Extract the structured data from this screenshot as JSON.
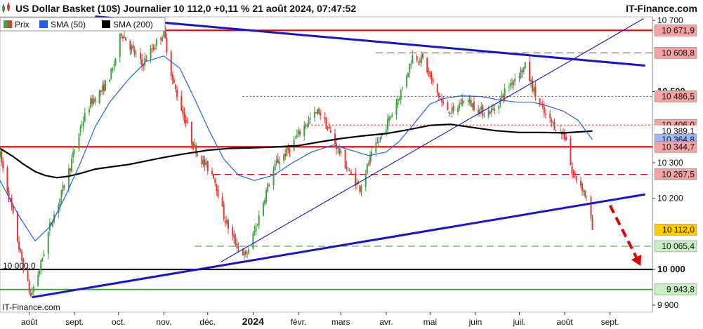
{
  "header": {
    "title": "US Dollar Basket (10$) Journalier 10 112,0 +0,11 % 21 août 2024, 07:47:52",
    "brand": "IT-Finance.com",
    "watermark": "IT-Finance.com",
    "candle_icon": "candlestick-icon"
  },
  "legend": [
    {
      "label": "Prix",
      "color": "#43a047",
      "color2": "#e53935"
    },
    {
      "label": "SMA (50)",
      "color": "#1f5ff2"
    },
    {
      "label": "SMA (200)",
      "color": "#000000"
    }
  ],
  "annotations": {
    "left_level_label": "10 000,0"
  },
  "colors": {
    "up": "#43a047",
    "down": "#e53935",
    "sma50": "#1f5ff2",
    "sma200": "#000000",
    "trendline": "#1414d2",
    "resistance": "#e00000",
    "support_green": "#34a02a",
    "arrow": "#e00000",
    "label_red_bg": "#f2a3a3",
    "label_blue_bg": "#9cb8f5",
    "label_green_bg": "#c8efc4",
    "label_price_bg": "#ffcc00"
  },
  "chart_data": {
    "type": "candlestick",
    "title": "US Dollar Basket (10$) Journalier",
    "last_value": 10112.0,
    "change_pct": 0.11,
    "timestamp": "21 août 2024, 07:47:52",
    "xlabel": "",
    "ylabel": "",
    "x_ticks": [
      {
        "label": "août",
        "date": "2023-08-01",
        "bold": false
      },
      {
        "label": "sept.",
        "date": "2023-09-01",
        "bold": false
      },
      {
        "label": "oct.",
        "date": "2023-10-01",
        "bold": false
      },
      {
        "label": "nov.",
        "date": "2023-11-01",
        "bold": false
      },
      {
        "label": "déc.",
        "date": "2023-12-01",
        "bold": false
      },
      {
        "label": "2024",
        "date": "2024-01-01",
        "bold": true
      },
      {
        "label": "févr.",
        "date": "2024-02-01",
        "bold": false
      },
      {
        "label": "mars",
        "date": "2024-03-01",
        "bold": false
      },
      {
        "label": "avr.",
        "date": "2024-04-01",
        "bold": false
      },
      {
        "label": "mai",
        "date": "2024-05-01",
        "bold": false
      },
      {
        "label": "juin",
        "date": "2024-06-01",
        "bold": false
      },
      {
        "label": "juil.",
        "date": "2024-07-01",
        "bold": false
      },
      {
        "label": "août",
        "date": "2024-08-01",
        "bold": false
      },
      {
        "label": "sept.",
        "date": "2024-09-01",
        "bold": false
      }
    ],
    "y_ticks": [
      {
        "label": "10 700",
        "value": 10700,
        "bold": false
      },
      {
        "label": "10 500",
        "value": 10500,
        "bold": true
      },
      {
        "label": "10 300",
        "value": 10300,
        "bold": false
      },
      {
        "label": "10 200",
        "value": 10200,
        "bold": false
      },
      {
        "label": "10 000",
        "value": 10000,
        "bold": true
      },
      {
        "label": "9 900",
        "value": 9900,
        "bold": false
      }
    ],
    "ylim": [
      9880,
      10710
    ],
    "xlim": [
      "2023-07-12",
      "2024-09-30"
    ],
    "grid": false,
    "legend_position": "top-left",
    "level_labels": [
      {
        "label": "10 671,9",
        "value": 10671.9,
        "style": "red"
      },
      {
        "label": "10 608,8",
        "value": 10608.8,
        "style": "red"
      },
      {
        "label": "10 486,5",
        "value": 10486.5,
        "style": "red"
      },
      {
        "label": "10 406,0",
        "value": 10406.0,
        "style": "red"
      },
      {
        "label": "10 389,1",
        "value": 10389.1,
        "style": "plain"
      },
      {
        "label": "10 364,8",
        "value": 10364.8,
        "style": "blue"
      },
      {
        "label": "10 344,7",
        "value": 10344.7,
        "style": "red"
      },
      {
        "label": "10 267,5",
        "value": 10267.5,
        "style": "red"
      },
      {
        "label": "10 112,0",
        "value": 10112.0,
        "style": "price"
      },
      {
        "label": "10 065,4",
        "value": 10065.4,
        "style": "green"
      },
      {
        "label": "9 943,8",
        "value": 9943.8,
        "style": "green"
      }
    ],
    "horizontal_lines": [
      {
        "value": 10671.9,
        "start": "2023-07-12",
        "style": "solid-red"
      },
      {
        "value": 10608.8,
        "start": "2024-03-25",
        "style": "dash-red"
      },
      {
        "value": 10486.5,
        "start": "2023-12-25",
        "style": "dot-red"
      },
      {
        "value": 10406.0,
        "start": "2024-02-05",
        "style": "dot-red"
      },
      {
        "value": 10344.7,
        "start": "2023-07-12",
        "style": "solid-red"
      },
      {
        "value": 10267.5,
        "start": "2023-12-05",
        "style": "dash-red"
      },
      {
        "value": 10065.4,
        "start": "2023-11-22",
        "style": "dash-green"
      },
      {
        "value": 10000.0,
        "start": "2023-07-12",
        "style": "solid-black"
      },
      {
        "value": 9943.8,
        "start": "2023-07-12",
        "style": "solid-green"
      }
    ],
    "trendlines": [
      {
        "from": [
          "2023-09-15",
          10711
        ],
        "to": [
          "2024-09-25",
          10573
        ],
        "width": "thick"
      },
      {
        "from": [
          "2023-08-03",
          9922
        ],
        "to": [
          "2024-09-25",
          10211
        ],
        "width": "thick"
      },
      {
        "from": [
          "2023-12-10",
          10021
        ],
        "to": [
          "2024-09-24",
          10705
        ],
        "width": "thin"
      }
    ],
    "forecast_arrow": {
      "from": [
        "2024-09-01",
        10180
      ],
      "to": [
        "2024-09-22",
        10010
      ]
    },
    "sma50": {
      "name": "SMA (50)",
      "points": [
        [
          "2023-07-12",
          10250
        ],
        [
          "2023-07-25",
          10150
        ],
        [
          "2023-08-05",
          10080
        ],
        [
          "2023-08-15",
          10120
        ],
        [
          "2023-08-25",
          10200
        ],
        [
          "2023-09-05",
          10300
        ],
        [
          "2023-09-15",
          10400
        ],
        [
          "2023-09-25",
          10470
        ],
        [
          "2023-10-08",
          10535
        ],
        [
          "2023-10-20",
          10585
        ],
        [
          "2023-11-01",
          10600
        ],
        [
          "2023-11-12",
          10565
        ],
        [
          "2023-11-22",
          10480
        ],
        [
          "2023-12-02",
          10390
        ],
        [
          "2023-12-12",
          10310
        ],
        [
          "2023-12-22",
          10265
        ],
        [
          "2024-01-02",
          10250
        ],
        [
          "2024-01-15",
          10265
        ],
        [
          "2024-01-28",
          10300
        ],
        [
          "2024-02-10",
          10330
        ],
        [
          "2024-02-25",
          10350
        ],
        [
          "2024-03-08",
          10335
        ],
        [
          "2024-03-20",
          10320
        ],
        [
          "2024-04-01",
          10330
        ],
        [
          "2024-04-10",
          10360
        ],
        [
          "2024-04-20",
          10410
        ],
        [
          "2024-05-01",
          10465
        ],
        [
          "2024-05-10",
          10480
        ],
        [
          "2024-05-22",
          10488
        ],
        [
          "2024-06-05",
          10486
        ],
        [
          "2024-06-18",
          10476
        ],
        [
          "2024-06-30",
          10470
        ],
        [
          "2024-07-10",
          10470
        ],
        [
          "2024-07-20",
          10460
        ],
        [
          "2024-07-31",
          10445
        ],
        [
          "2024-08-10",
          10420
        ],
        [
          "2024-08-20",
          10364.8
        ]
      ]
    },
    "sma200": {
      "name": "SMA (200)",
      "points": [
        [
          "2023-07-12",
          10340
        ],
        [
          "2023-07-20",
          10320
        ],
        [
          "2023-07-28",
          10296
        ],
        [
          "2023-08-05",
          10275
        ],
        [
          "2023-08-12",
          10264
        ],
        [
          "2023-08-20",
          10258
        ],
        [
          "2023-08-28",
          10262
        ],
        [
          "2023-09-05",
          10270
        ],
        [
          "2023-09-15",
          10282
        ],
        [
          "2023-09-25",
          10288
        ],
        [
          "2023-10-08",
          10295
        ],
        [
          "2023-10-20",
          10305
        ],
        [
          "2023-11-01",
          10315
        ],
        [
          "2023-11-15",
          10325
        ],
        [
          "2023-12-01",
          10335
        ],
        [
          "2023-12-15",
          10340
        ],
        [
          "2024-01-01",
          10342
        ],
        [
          "2024-01-15",
          10344
        ],
        [
          "2024-02-01",
          10348
        ],
        [
          "2024-02-15",
          10358
        ],
        [
          "2024-03-01",
          10368
        ],
        [
          "2024-03-15",
          10375
        ],
        [
          "2024-04-01",
          10382
        ],
        [
          "2024-04-15",
          10392
        ],
        [
          "2024-05-01",
          10405
        ],
        [
          "2024-05-15",
          10408
        ],
        [
          "2024-06-01",
          10398
        ],
        [
          "2024-06-15",
          10390
        ],
        [
          "2024-07-01",
          10385
        ],
        [
          "2024-07-15",
          10385
        ],
        [
          "2024-08-01",
          10384
        ],
        [
          "2024-08-20",
          10389.1
        ]
      ]
    },
    "price_path": {
      "name": "Prix",
      "points": [
        [
          "2023-07-12",
          10320
        ],
        [
          "2023-07-20",
          10170
        ],
        [
          "2023-07-26",
          10040
        ],
        [
          "2023-08-02",
          9925
        ],
        [
          "2023-08-08",
          10000
        ],
        [
          "2023-08-15",
          10120
        ],
        [
          "2023-08-22",
          10200
        ],
        [
          "2023-08-29",
          10290
        ],
        [
          "2023-09-05",
          10400
        ],
        [
          "2023-09-12",
          10470
        ],
        [
          "2023-09-20",
          10505
        ],
        [
          "2023-09-27",
          10560
        ],
        [
          "2023-10-03",
          10668
        ],
        [
          "2023-10-10",
          10620
        ],
        [
          "2023-10-17",
          10575
        ],
        [
          "2023-10-24",
          10620
        ],
        [
          "2023-11-01",
          10668
        ],
        [
          "2023-11-07",
          10530
        ],
        [
          "2023-11-14",
          10440
        ],
        [
          "2023-11-21",
          10350
        ],
        [
          "2023-11-28",
          10300
        ],
        [
          "2023-12-05",
          10265
        ],
        [
          "2023-12-12",
          10150
        ],
        [
          "2023-12-19",
          10080
        ],
        [
          "2023-12-27",
          10035
        ],
        [
          "2024-01-03",
          10120
        ],
        [
          "2024-01-10",
          10220
        ],
        [
          "2024-01-17",
          10300
        ],
        [
          "2024-01-24",
          10330
        ],
        [
          "2024-02-01",
          10380
        ],
        [
          "2024-02-08",
          10420
        ],
        [
          "2024-02-15",
          10445
        ],
        [
          "2024-02-22",
          10390
        ],
        [
          "2024-02-29",
          10330
        ],
        [
          "2024-03-07",
          10270
        ],
        [
          "2024-03-14",
          10230
        ],
        [
          "2024-03-21",
          10310
        ],
        [
          "2024-03-28",
          10370
        ],
        [
          "2024-04-05",
          10440
        ],
        [
          "2024-04-12",
          10510
        ],
        [
          "2024-04-19",
          10600
        ],
        [
          "2024-04-26",
          10590
        ],
        [
          "2024-05-03",
          10520
        ],
        [
          "2024-05-10",
          10460
        ],
        [
          "2024-05-17",
          10440
        ],
        [
          "2024-05-24",
          10480
        ],
        [
          "2024-05-31",
          10460
        ],
        [
          "2024-06-07",
          10440
        ],
        [
          "2024-06-14",
          10450
        ],
        [
          "2024-06-21",
          10500
        ],
        [
          "2024-06-28",
          10540
        ],
        [
          "2024-07-05",
          10570
        ],
        [
          "2024-07-12",
          10490
        ],
        [
          "2024-07-19",
          10430
        ],
        [
          "2024-07-26",
          10400
        ],
        [
          "2024-08-02",
          10370
        ],
        [
          "2024-08-06",
          10270
        ],
        [
          "2024-08-12",
          10240
        ],
        [
          "2024-08-16",
          10200
        ],
        [
          "2024-08-20",
          10112
        ]
      ]
    }
  }
}
